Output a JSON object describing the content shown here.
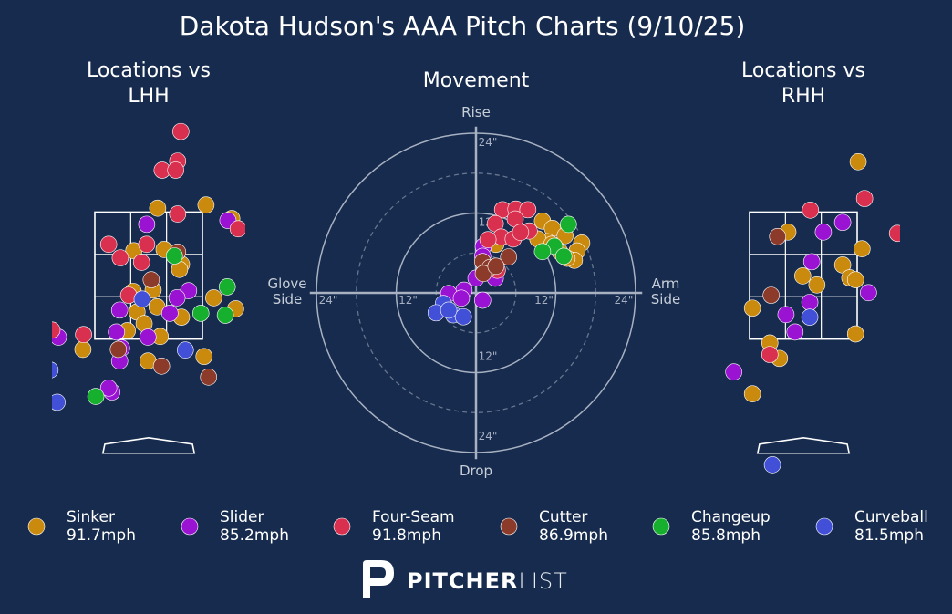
{
  "title": "Dakota Hudson's AAA Pitch Charts (9/10/25)",
  "logo": {
    "bold": "PITCHER",
    "light": "LIST"
  },
  "chart_data": [
    {
      "type": "location",
      "title": "Locations vs LHH",
      "xlim": [
        -1.5,
        1.5
      ],
      "ylim": [
        -0.5,
        4.9
      ],
      "series": [
        {
          "name": "Sinker",
          "color": "#c98a0e",
          "x": [
            0.14,
            0.89,
            1.29,
            -0.23,
            0.24,
            0.51,
            0.48,
            0.07,
            -0.24,
            0.13,
            -0.18,
            -0.07,
            0.51,
            1.01,
            1.35,
            0.18,
            -1.02,
            -0.01,
            0.86,
            -0.33
          ],
          "values": [
            3.53,
            3.58,
            3.37,
            2.87,
            2.89,
            2.66,
            2.58,
            2.26,
            2.24,
            2.0,
            1.92,
            1.74,
            1.84,
            2.14,
            1.97,
            1.54,
            1.34,
            1.16,
            1.23,
            1.63
          ]
        },
        {
          "name": "Slider",
          "color": "#9a12d2",
          "x": [
            -0.03,
            1.23,
            0.62,
            0.44,
            0.33,
            -0.45,
            -1.4,
            -0.5,
            -0.01,
            -0.42,
            -0.45,
            -0.57,
            -0.62
          ],
          "values": [
            3.28,
            3.34,
            2.25,
            2.14,
            1.9,
            1.95,
            1.53,
            1.61,
            1.53,
            1.36,
            1.16,
            0.68,
            0.74
          ]
        },
        {
          "name": "Four-Seam",
          "color": "#d8304e",
          "x": [
            0.5,
            0.45,
            0.21,
            0.42,
            0.45,
            -0.03,
            -0.62,
            -0.44,
            -0.11,
            -0.31,
            -1.01,
            -1.5,
            1.39
          ],
          "values": [
            4.72,
            4.26,
            4.12,
            4.12,
            3.44,
            2.97,
            2.97,
            2.76,
            2.69,
            2.18,
            1.57,
            1.64,
            3.21
          ]
        },
        {
          "name": "Cutter",
          "color": "#8c3b2a",
          "x": [
            0.04,
            0.45,
            -0.47,
            0.2,
            0.93
          ],
          "values": [
            2.42,
            2.85,
            1.34,
            1.08,
            0.91
          ]
        },
        {
          "name": "Changeup",
          "color": "#17b02e",
          "x": [
            0.4,
            1.22,
            0.81,
            1.19,
            -0.82
          ],
          "values": [
            2.79,
            2.31,
            1.9,
            1.87,
            0.61
          ]
        },
        {
          "name": "Curveball",
          "color": "#4250d8",
          "x": [
            -0.1,
            0.57,
            -1.42,
            -1.53
          ],
          "values": [
            2.12,
            1.33,
            0.52,
            1.02
          ]
        }
      ]
    },
    {
      "type": "movement",
      "title": "Movement",
      "xlim": [
        -25,
        25
      ],
      "ylim": [
        -25,
        25
      ],
      "x_label_left": "Glove Side",
      "x_label_right": "Arm Side",
      "y_label_top": "Rise",
      "y_label_bottom": "Drop",
      "xticks": [
        {
          "value": -24,
          "label": "24\""
        },
        {
          "value": -12,
          "label": "12\""
        },
        {
          "value": 12,
          "label": "12\""
        },
        {
          "value": 24,
          "label": "24\""
        }
      ],
      "yticks": [
        {
          "value": -24,
          "label": "24\""
        },
        {
          "value": -12,
          "label": "12\""
        },
        {
          "value": 12,
          "label": "12\""
        },
        {
          "value": 24,
          "label": "24\""
        }
      ],
      "series": [
        {
          "name": "Sinker",
          "speed": "91.7mph",
          "color": "#c98a0e",
          "x": [
            10.0,
            11.5,
            13.4,
            15.9,
            15.2,
            12.6,
            14.8,
            13.7,
            10.7,
            9.3,
            3.0,
            11.4
          ],
          "values": [
            10.8,
            9.7,
            8.6,
            7.5,
            6.3,
            6.2,
            4.9,
            5.2,
            7.7,
            8.1,
            7.3,
            7.3
          ]
        },
        {
          "name": "Slider",
          "speed": "85.2mph",
          "color": "#9a12d2",
          "x": [
            1.1,
            1.0,
            0.0,
            -1.8,
            -4.1,
            -2.2,
            1.0,
            2.9
          ],
          "values": [
            7.0,
            5.5,
            2.2,
            0.4,
            -0.1,
            -0.8,
            -1.1,
            2.2
          ]
        },
        {
          "name": "Four-Seam",
          "speed": "91.8mph",
          "color": "#d8304e",
          "x": [
            4.0,
            6.0,
            7.8,
            2.9,
            5.9,
            8.0,
            3.8,
            5.6,
            1.8,
            6.7,
            3.2
          ],
          "values": [
            12.5,
            12.6,
            12.5,
            10.4,
            11.1,
            9.3,
            8.4,
            8.1,
            8.0,
            9.1,
            3.4
          ]
        },
        {
          "name": "Cutter",
          "speed": "86.9mph",
          "color": "#8c3b2a",
          "x": [
            1.0,
            4.9,
            2.1,
            1.1,
            3.0
          ],
          "values": [
            4.7,
            5.4,
            3.8,
            2.9,
            4.0
          ]
        },
        {
          "name": "Changeup",
          "speed": "85.8mph",
          "color": "#17b02e",
          "x": [
            13.9,
            11.8,
            10.0,
            13.2
          ],
          "values": [
            10.3,
            7.0,
            6.2,
            5.5
          ]
        },
        {
          "name": "Curveball",
          "speed": "81.5mph",
          "color": "#4250d8",
          "x": [
            -4.9,
            -6.0,
            -3.4,
            -1.9,
            -4.1
          ],
          "values": [
            -1.6,
            -3.0,
            -3.3,
            -3.6,
            -2.6
          ]
        }
      ]
    },
    {
      "type": "location",
      "title": "Locations vs RHH",
      "xlim": [
        -1.5,
        1.5
      ],
      "ylim": [
        -0.5,
        4.9
      ],
      "series": [
        {
          "name": "Sinker",
          "color": "#c98a0e",
          "x": [
            0.85,
            -0.24,
            0.91,
            -0.01,
            0.61,
            0.21,
            0.72,
            0.81,
            -0.79,
            -0.52,
            -0.37,
            0.81,
            -0.79
          ],
          "values": [
            4.25,
            3.16,
            2.9,
            2.48,
            2.65,
            2.34,
            2.45,
            2.42,
            1.98,
            1.44,
            1.2,
            1.58,
            0.65
          ]
        },
        {
          "name": "Slider",
          "color": "#9a12d2",
          "x": [
            0.61,
            0.31,
            0.13,
            0.1,
            -0.27,
            -0.13,
            1.01,
            -1.08
          ],
          "values": [
            3.31,
            3.16,
            2.7,
            2.07,
            1.88,
            1.61,
            2.22,
            0.99
          ]
        },
        {
          "name": "Four-Seam",
          "color": "#d8304e",
          "x": [
            0.11,
            0.95,
            1.46,
            -0.52
          ],
          "values": [
            3.5,
            3.68,
            3.14,
            1.26
          ]
        },
        {
          "name": "Cutter",
          "color": "#8c3b2a",
          "x": [
            -0.4,
            -0.5
          ],
          "values": [
            3.09,
            2.18
          ]
        },
        {
          "name": "Changeup",
          "color": "#17b02e",
          "x": [],
          "values": []
        },
        {
          "name": "Curveball",
          "color": "#4250d8",
          "x": [
            0.1,
            -0.48
          ],
          "values": [
            1.84,
            -0.45
          ]
        }
      ]
    }
  ]
}
